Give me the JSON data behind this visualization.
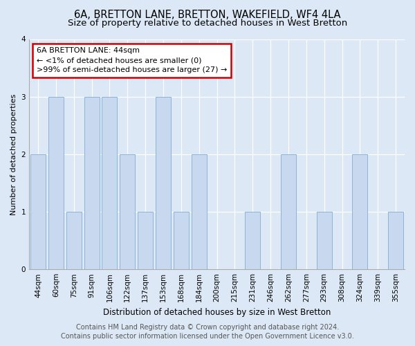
{
  "title": "6A, BRETTON LANE, BRETTON, WAKEFIELD, WF4 4LA",
  "subtitle": "Size of property relative to detached houses in West Bretton",
  "xlabel": "Distribution of detached houses by size in West Bretton",
  "ylabel": "Number of detached properties",
  "categories": [
    "44sqm",
    "60sqm",
    "75sqm",
    "91sqm",
    "106sqm",
    "122sqm",
    "137sqm",
    "153sqm",
    "168sqm",
    "184sqm",
    "200sqm",
    "215sqm",
    "231sqm",
    "246sqm",
    "262sqm",
    "277sqm",
    "293sqm",
    "308sqm",
    "324sqm",
    "339sqm",
    "355sqm"
  ],
  "values": [
    2,
    3,
    1,
    3,
    3,
    2,
    1,
    3,
    1,
    2,
    0,
    0,
    1,
    0,
    2,
    0,
    1,
    0,
    2,
    0,
    1
  ],
  "bar_color": "#c8d9ef",
  "bar_edge_color": "#8ab4d8",
  "annotation_box_text": "6A BRETTON LANE: 44sqm\n← <1% of detached houses are smaller (0)\n>99% of semi-detached houses are larger (27) →",
  "annotation_box_edge_color": "#cc0000",
  "annotation_box_facecolor": "#ffffff",
  "ylim": [
    0,
    4
  ],
  "yticks": [
    0,
    1,
    2,
    3,
    4
  ],
  "footer_line1": "Contains HM Land Registry data © Crown copyright and database right 2024.",
  "footer_line2": "Contains public sector information licensed under the Open Government Licence v3.0.",
  "background_color": "#dce8f5",
  "plot_background_color": "#dce8f5",
  "title_fontsize": 10.5,
  "subtitle_fontsize": 9.5,
  "xlabel_fontsize": 8.5,
  "ylabel_fontsize": 8,
  "tick_fontsize": 7.5,
  "footer_fontsize": 7,
  "annot_fontsize": 8
}
